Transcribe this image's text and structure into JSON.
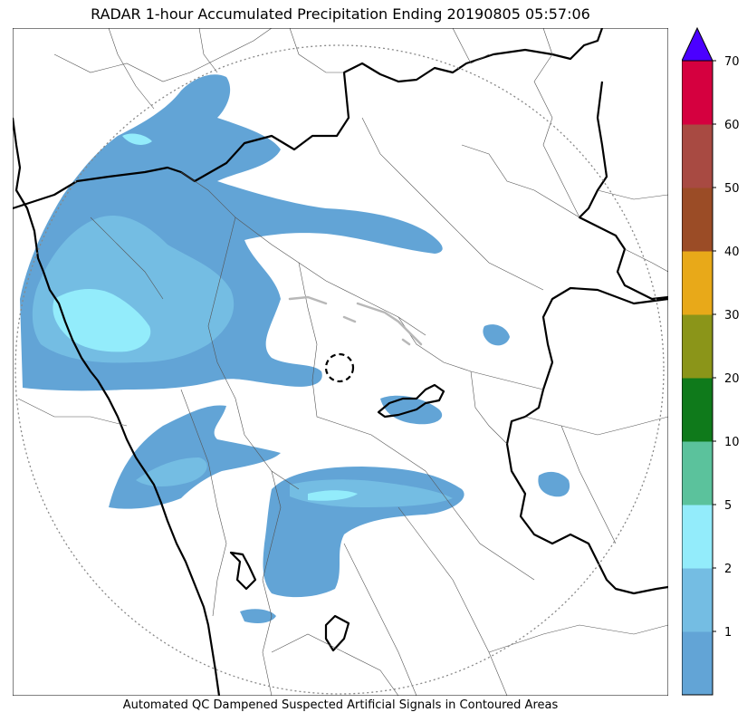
{
  "title": "RADAR 1-hour Accumulated Precipitation Ending 20190805 05:57:06",
  "footer_note": "Automated QC Dampened Suspected Artificial Signals in Contoured Areas",
  "colors": {
    "bg": "#ffffff",
    "precip_lt1": "#62a4d6",
    "precip_1_2": "#74bde3",
    "precip_2_5": "#93ecfb",
    "coast": "#000000",
    "district": "#555555",
    "range_ring": "#888888"
  },
  "colorbar": {
    "extend": "max",
    "extend_color": "#4b00ff",
    "bins": [
      {
        "lower": 0,
        "upper": 1,
        "color": "#62a4d6"
      },
      {
        "lower": 1,
        "upper": 2,
        "color": "#74bde3"
      },
      {
        "lower": 2,
        "upper": 5,
        "color": "#93ecfb"
      },
      {
        "lower": 5,
        "upper": 10,
        "color": "#5bc29c"
      },
      {
        "lower": 10,
        "upper": 20,
        "color": "#0f7a1b"
      },
      {
        "lower": 20,
        "upper": 30,
        "color": "#8b9519"
      },
      {
        "lower": 30,
        "upper": 40,
        "color": "#e8a919"
      },
      {
        "lower": 40,
        "upper": 50,
        "color": "#9b4c26"
      },
      {
        "lower": 50,
        "upper": 60,
        "color": "#a84a42"
      },
      {
        "lower": 60,
        "upper": 70,
        "color": "#d5003f"
      }
    ],
    "tick_labels": [
      "1",
      "2",
      "5",
      "10",
      "20",
      "30",
      "40",
      "50",
      "60",
      "70"
    ]
  }
}
